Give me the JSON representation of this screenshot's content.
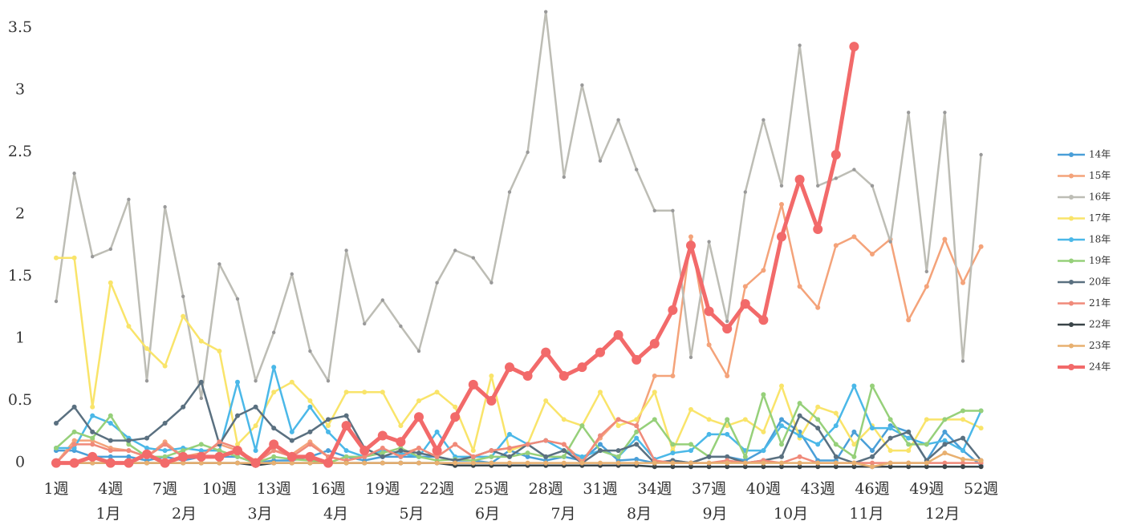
{
  "chart_data": {
    "type": "line",
    "categories": [
      "1週",
      null,
      null,
      "4週",
      null,
      null,
      "7週",
      null,
      null,
      "10週",
      null,
      null,
      "13週",
      null,
      null,
      "16週",
      null,
      null,
      "19週",
      null,
      null,
      "22週",
      null,
      null,
      "25週",
      null,
      null,
      "28週",
      null,
      null,
      "31週",
      null,
      null,
      "34週",
      null,
      null,
      "37週",
      null,
      null,
      "40週",
      null,
      null,
      "43週",
      null,
      null,
      "46週",
      null,
      null,
      "49週",
      null,
      null,
      "52週"
    ],
    "month_labels": [
      "1月",
      "2月",
      "3月",
      "4月",
      "5月",
      "6月",
      "7月",
      "8月",
      "9月",
      "10月",
      "11月",
      "12月"
    ],
    "ylim": [
      -0.08,
      3.66
    ],
    "yticks": [
      0,
      0.5,
      1,
      1.5,
      2,
      2.5,
      3,
      3.5
    ],
    "grid": false,
    "legend": "right",
    "series": [
      {
        "name": "14年",
        "color": "#4a9fd8",
        "values": [
          0.1,
          0.1,
          0.05,
          0.05,
          0.05,
          0.02,
          0.05,
          0.02,
          0.05,
          0.05,
          0.05,
          0,
          0.02,
          0.02,
          0.05,
          0.1,
          0.05,
          0.02,
          0.05,
          0.05,
          0.05,
          0.05,
          0.02,
          0.02,
          0,
          0.1,
          0.05,
          0.02,
          0.05,
          0.02,
          0.15,
          0.02,
          0.03,
          0,
          0.02,
          0,
          0.05,
          0.05,
          0.02,
          0.1,
          0.35,
          0.25,
          0.02,
          0.02,
          0.25,
          0.1,
          0.3,
          0.25,
          0.02,
          0.25,
          0.1,
          -0.02
        ]
      },
      {
        "name": "15年",
        "color": "#f4a37a",
        "values": [
          0,
          0.18,
          0.18,
          0.12,
          0.1,
          0.05,
          0.17,
          0.05,
          0.08,
          0.15,
          0.1,
          0.02,
          0.1,
          0.07,
          0.17,
          0.05,
          0.02,
          0.05,
          0.1,
          0.07,
          0.12,
          0.05,
          0.15,
          0.05,
          0.1,
          0.12,
          0.15,
          0.18,
          0.15,
          0.02,
          0.2,
          0.35,
          0.3,
          0.7,
          0.7,
          1.82,
          0.95,
          0.7,
          1.42,
          1.55,
          2.08,
          1.42,
          1.25,
          1.75,
          1.82,
          1.68,
          1.8,
          1.15,
          1.42,
          1.8,
          1.45,
          1.74
        ]
      },
      {
        "name": "16年",
        "color": "#bdbdb5",
        "values": [
          1.3,
          2.33,
          1.66,
          1.72,
          2.12,
          0.66,
          2.06,
          1.34,
          0.52,
          1.6,
          1.32,
          0.66,
          1.05,
          1.52,
          0.9,
          0.66,
          1.71,
          1.12,
          1.31,
          1.1,
          0.9,
          1.45,
          1.71,
          1.65,
          1.45,
          2.18,
          2.5,
          3.63,
          2.3,
          3.04,
          2.43,
          2.76,
          2.36,
          2.03,
          2.03,
          0.85,
          1.78,
          1.14,
          2.18,
          2.76,
          2.23,
          3.36,
          2.23,
          2.29,
          2.36,
          2.23,
          1.78,
          2.82,
          1.54,
          2.82,
          0.82,
          2.48
        ]
      },
      {
        "name": "17年",
        "color": "#f9e46a",
        "values": [
          1.65,
          1.65,
          0.45,
          1.45,
          1.1,
          0.92,
          0.78,
          1.18,
          0.98,
          0.9,
          0.15,
          0.3,
          0.57,
          0.65,
          0.5,
          0.3,
          0.57,
          0.57,
          0.57,
          0.3,
          0.5,
          0.57,
          0.45,
          0.1,
          0.7,
          0.1,
          0.15,
          0.5,
          0.35,
          0.3,
          0.57,
          0.3,
          0.35,
          0.57,
          0.1,
          0.43,
          0.35,
          0.3,
          0.35,
          0.25,
          0.62,
          0.2,
          0.45,
          0.4,
          0.15,
          0.3,
          0.1,
          0.1,
          0.35,
          0.35,
          0.35,
          0.28
        ]
      },
      {
        "name": "18年",
        "color": "#4bb8e8",
        "values": [
          0.12,
          0.12,
          0.38,
          0.32,
          0.2,
          0.12,
          0.1,
          0.12,
          0.1,
          0.1,
          0.65,
          0.1,
          0.77,
          0.25,
          0.45,
          0.25,
          0.1,
          0.05,
          0.1,
          0.08,
          0.05,
          0.25,
          0.05,
          0.05,
          0.05,
          0.23,
          0.15,
          0.18,
          0.1,
          0.05,
          0.1,
          0.05,
          0.2,
          0.03,
          0.08,
          0.1,
          0.23,
          0.23,
          0.1,
          0.1,
          0.3,
          0.22,
          0.15,
          0.3,
          0.62,
          0.28,
          0.28,
          0.2,
          0.15,
          0.18,
          0.1,
          0.42
        ]
      },
      {
        "name": "19年",
        "color": "#96d07a",
        "values": [
          0.12,
          0.25,
          0.2,
          0.38,
          0.15,
          0.05,
          0.05,
          0.1,
          0.15,
          0.1,
          0.05,
          0,
          0.05,
          0.03,
          0.02,
          0,
          0.05,
          0.05,
          0.08,
          0.12,
          0.05,
          0.02,
          0.03,
          0.02,
          0.05,
          0.05,
          0.08,
          0.05,
          0.05,
          0.3,
          0.1,
          0.05,
          0.25,
          0.35,
          0.15,
          0.15,
          0.05,
          0.35,
          0.05,
          0.55,
          0.15,
          0.48,
          0.35,
          0.15,
          0.05,
          0.62,
          0.35,
          0.15,
          0.15,
          0.35,
          0.42,
          0.42
        ]
      },
      {
        "name": "20年",
        "color": "#5a7080",
        "values": [
          0.32,
          0.45,
          0.25,
          0.18,
          0.18,
          0.2,
          0.32,
          0.45,
          0.65,
          0.15,
          0.38,
          0.45,
          0.28,
          0.18,
          0.25,
          0.35,
          0.38,
          0.12,
          0.05,
          0.1,
          0.08,
          0.05,
          0.02,
          0.05,
          0.1,
          0.05,
          0.15,
          0.05,
          0.1,
          0,
          0.1,
          0.1,
          0.15,
          0,
          0.02,
          0,
          0.05,
          0.05,
          0,
          0.02,
          0.05,
          0.38,
          0.28,
          0.05,
          0,
          0.05,
          0.2,
          0.25,
          0.02,
          0.15,
          0.2,
          0.02
        ]
      },
      {
        "name": "21年",
        "color": "#f08a7a",
        "values": [
          0,
          0.15,
          0.15,
          0.1,
          0.1,
          0.05,
          0.15,
          0.05,
          0.05,
          0.17,
          0.12,
          0,
          0.1,
          0.05,
          0.15,
          0.05,
          0.02,
          0.05,
          0.12,
          0.05,
          0.12,
          0.05,
          0.15,
          0.05,
          0.1,
          0.12,
          0.15,
          0.18,
          0.15,
          0,
          0.22,
          0.35,
          0.3,
          0.02,
          0,
          0,
          0,
          0.02,
          0,
          0.02,
          0,
          0.05,
          0,
          0,
          0,
          0,
          0,
          0,
          0,
          0,
          0,
          0
        ]
      },
      {
        "name": "22年",
        "color": "#3a4448",
        "values": [
          0,
          0,
          0,
          0,
          0,
          0,
          0,
          0,
          0,
          0,
          0,
          -0.02,
          0,
          0,
          0,
          0,
          0,
          0,
          0,
          0,
          0,
          0,
          -0.02,
          -0.02,
          -0.02,
          -0.02,
          -0.02,
          -0.02,
          -0.02,
          -0.02,
          -0.02,
          -0.02,
          -0.02,
          -0.03,
          -0.03,
          -0.03,
          -0.03,
          -0.03,
          -0.03,
          -0.03,
          -0.03,
          -0.03,
          -0.03,
          -0.03,
          -0.03,
          -0.03,
          -0.03,
          -0.03,
          -0.03,
          -0.03,
          -0.03,
          -0.03
        ]
      },
      {
        "name": "23年",
        "color": "#e8b070",
        "values": [
          0,
          0,
          0,
          0,
          0,
          0,
          0,
          0,
          0,
          0,
          0,
          0,
          0,
          0,
          0,
          0,
          0,
          0,
          0,
          0,
          0,
          0,
          0,
          0,
          0,
          0,
          0,
          0,
          0,
          0,
          0,
          0,
          0,
          0,
          0,
          0,
          0,
          0,
          0,
          0,
          0,
          0,
          0,
          0,
          0,
          -0.03,
          0,
          0,
          0,
          0.08,
          0.03,
          0.02
        ]
      },
      {
        "name": "24年",
        "color": "#f26a6a",
        "values": [
          0,
          0,
          0.05,
          0,
          0,
          0.07,
          0,
          0.05,
          0.05,
          0.05,
          0.1,
          0,
          0.15,
          0.05,
          0.05,
          0,
          0.3,
          0.1,
          0.22,
          0.17,
          0.37,
          0.1,
          0.37,
          0.63,
          0.5,
          0.77,
          0.7,
          0.89,
          0.7,
          0.77,
          0.89,
          1.03,
          0.83,
          0.96,
          1.23,
          1.75,
          1.22,
          1.08,
          1.28,
          1.15,
          1.82,
          2.28,
          1.88,
          2.48,
          3.35,
          null,
          null,
          null,
          null,
          null,
          null,
          null
        ]
      }
    ]
  }
}
